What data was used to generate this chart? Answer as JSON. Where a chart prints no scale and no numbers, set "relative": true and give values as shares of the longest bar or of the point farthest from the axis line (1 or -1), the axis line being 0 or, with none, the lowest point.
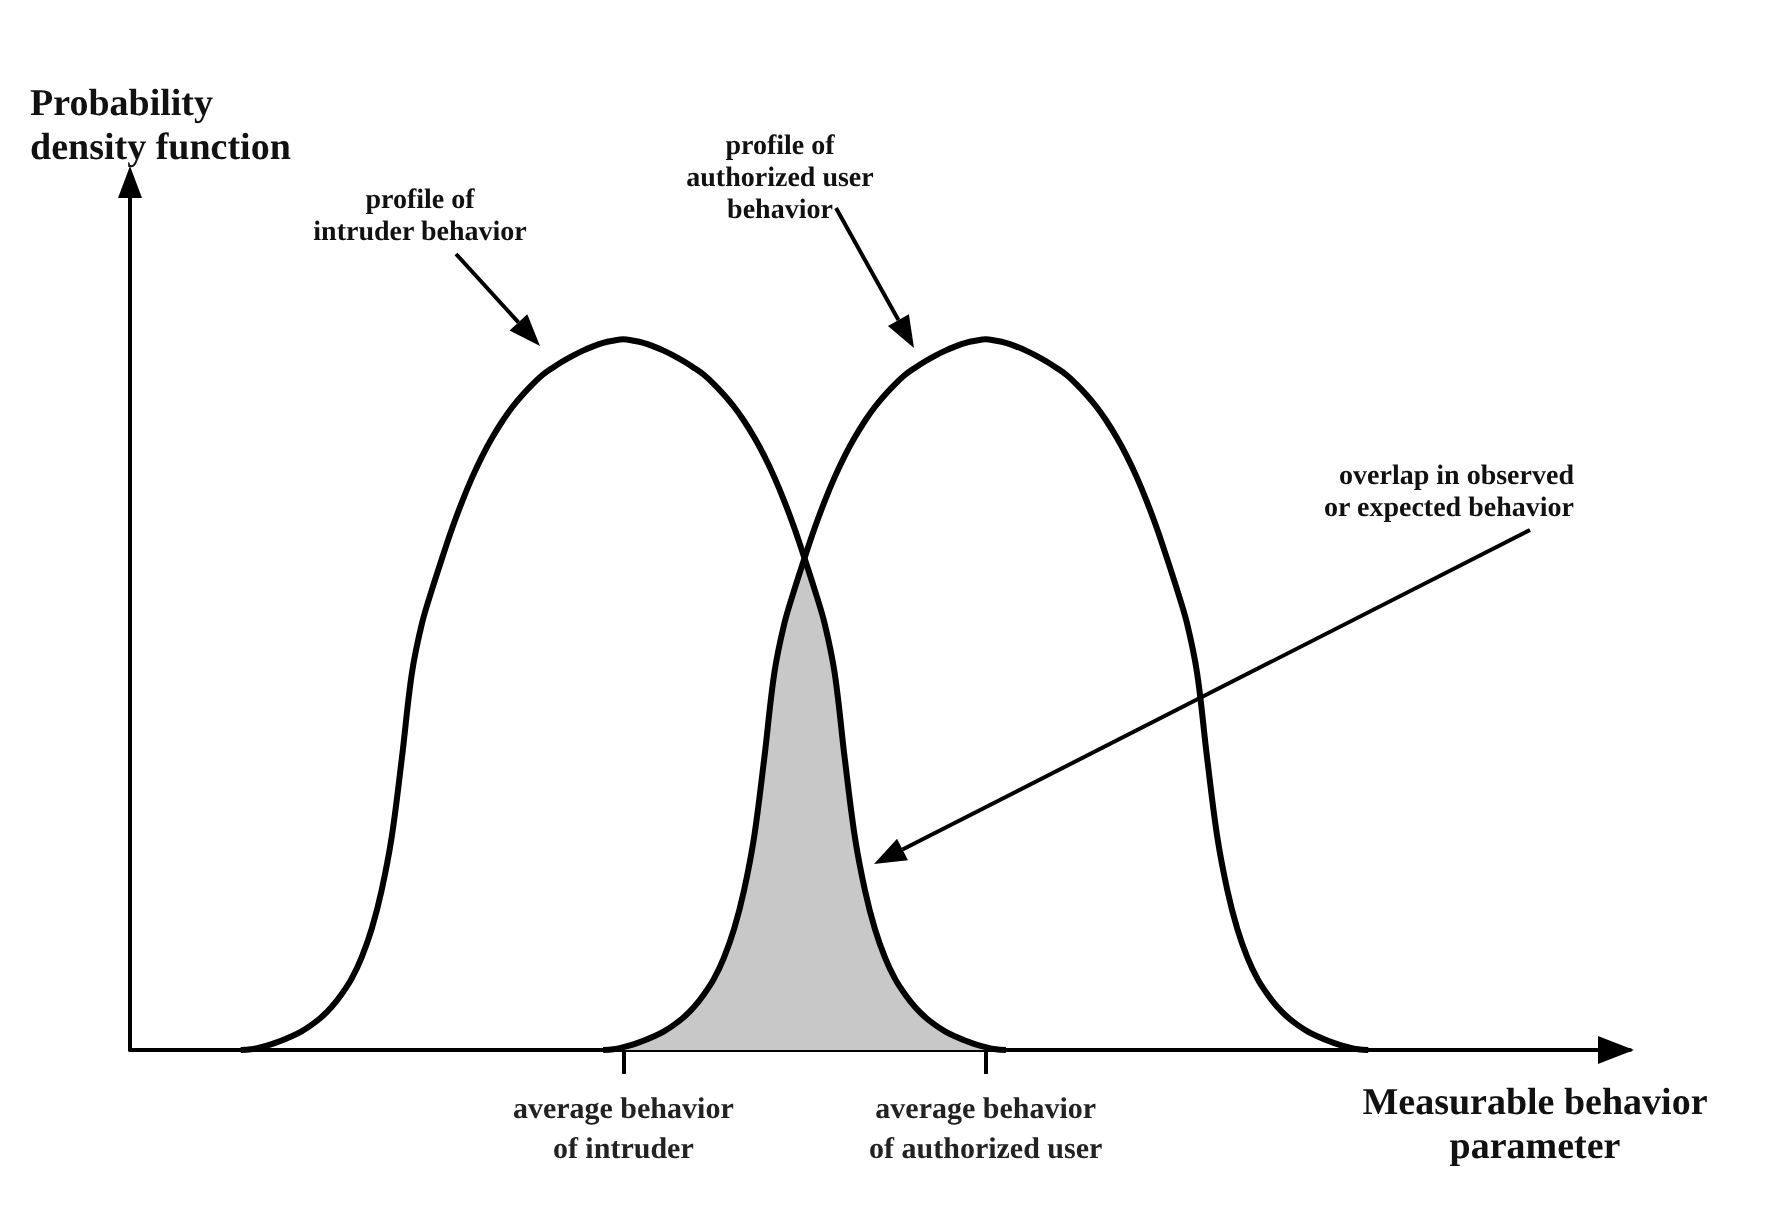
{
  "chart_data": {
    "type": "line",
    "relative": true,
    "marker": "none",
    "xlabel": "Measurable behavior\nparameter",
    "ylabel": "Probability\ndensity function",
    "annotations": [
      "profile of\nintruder behavior",
      "profile of\nauthorized user\nbehavior",
      "overlap in observed\nor expected behavior"
    ],
    "categories": [
      null,
      null,
      null,
      null,
      null,
      null,
      null,
      null,
      null,
      null,
      null,
      null,
      null,
      null,
      null,
      null,
      null,
      null,
      null,
      null,
      null,
      null,
      null,
      null,
      null,
      null,
      null,
      null,
      null,
      null,
      null,
      null,
      null,
      null,
      null,
      null,
      null,
      null,
      null,
      null,
      null,
      null,
      null,
      null,
      null,
      null,
      null,
      null,
      null,
      "average behavior\nof intruder",
      null,
      null,
      null,
      null,
      null,
      null,
      null,
      null,
      null,
      null,
      null,
      null,
      null,
      null,
      null,
      null,
      null,
      null,
      null,
      null,
      null,
      null,
      null,
      null,
      null,
      null,
      null,
      null,
      null,
      null,
      null,
      null,
      null,
      null,
      null,
      "average behavior\nof authorized user",
      null,
      null,
      null,
      null,
      null,
      null,
      null,
      null,
      null,
      null,
      null,
      null,
      null,
      null,
      null,
      null,
      null,
      null,
      null,
      null,
      null,
      null,
      null,
      null,
      null,
      null,
      null,
      null,
      null,
      null,
      null,
      null,
      null,
      null,
      null,
      null,
      null,
      null,
      null,
      null,
      null,
      null,
      null,
      null,
      null,
      null,
      null,
      null,
      null,
      null,
      null,
      null,
      null,
      null,
      null,
      null,
      null,
      null,
      null,
      null,
      null,
      null,
      null,
      null
    ],
    "series": [
      {
        "type": "area",
        "color": "#c8c8c8",
        "values": [
          null,
          null,
          null,
          null,
          null,
          null,
          null,
          null,
          null,
          null,
          null,
          null,
          null,
          null,
          null,
          null,
          null,
          null,
          null,
          null,
          null,
          null,
          null,
          null,
          null,
          null,
          null,
          null,
          null,
          null,
          null,
          null,
          null,
          null,
          null,
          null,
          null,
          null,
          null,
          null,
          null,
          null,
          null,
          null,
          null,
          null,
          null,
          0,
          0.001,
          0.004,
          0.008,
          0.013,
          0.019,
          0.026,
          0.035,
          0.046,
          0.06,
          0.078,
          0.1,
          0.13,
          0.17,
          0.225,
          0.3,
          0.41,
          0.53,
          0.6,
          0.648,
          0.692,
          0.648,
          0.6,
          0.53,
          0.41,
          0.3,
          0.225,
          0.17,
          0.13,
          0.1,
          0.078,
          0.06,
          0.046,
          0.035,
          0.026,
          0.019,
          0.013,
          0.008,
          0.004,
          0.001,
          0,
          null,
          null,
          null,
          null,
          null,
          null,
          null,
          null,
          null,
          null,
          null,
          null,
          null,
          null,
          null,
          null,
          null,
          null,
          null,
          null,
          null,
          null,
          null,
          null,
          null,
          null,
          null,
          null,
          null,
          null,
          null,
          null,
          null,
          null,
          null,
          null,
          null,
          null,
          null,
          null,
          null,
          null,
          null,
          null,
          null,
          null,
          null,
          null,
          null,
          null,
          null,
          null,
          null,
          null,
          null,
          null,
          null,
          null,
          null,
          null,
          null,
          null
        ]
      },
      {
        "color": "#000000",
        "values": [
          null,
          null,
          null,
          null,
          null,
          null,
          null,
          null,
          null,
          null,
          null,
          0,
          0.001,
          0.004,
          0.008,
          0.013,
          0.019,
          0.026,
          0.035,
          0.046,
          0.06,
          0.078,
          0.1,
          0.13,
          0.17,
          0.225,
          0.3,
          0.41,
          0.53,
          0.6,
          0.648,
          0.692,
          0.734,
          0.772,
          0.806,
          0.836,
          0.862,
          0.885,
          0.905,
          0.922,
          0.937,
          0.95,
          0.96,
          0.969,
          0.977,
          0.984,
          0.99,
          0.995,
          0.998,
          1,
          0.998,
          0.995,
          0.99,
          0.984,
          0.977,
          0.969,
          0.96,
          0.95,
          0.937,
          0.922,
          0.905,
          0.885,
          0.862,
          0.836,
          0.806,
          0.772,
          0.734,
          0.692,
          0.648,
          0.6,
          0.53,
          0.41,
          0.3,
          0.225,
          0.17,
          0.13,
          0.1,
          0.078,
          0.06,
          0.046,
          0.035,
          0.026,
          0.019,
          0.013,
          0.008,
          0.004,
          0.001,
          0,
          null,
          null,
          null,
          null,
          null,
          null,
          null,
          null,
          null,
          null,
          null,
          null,
          null,
          null,
          null,
          null,
          null,
          null,
          null,
          null,
          null,
          null,
          null,
          null,
          null,
          null,
          null,
          null,
          null,
          null,
          null,
          null,
          null,
          null,
          null,
          null,
          null,
          null,
          null,
          null,
          null,
          null,
          null,
          null,
          null,
          null,
          null,
          null,
          null,
          null,
          null,
          null,
          null,
          null,
          null,
          null,
          null,
          null,
          null,
          null,
          null,
          null
        ]
      },
      {
        "color": "#000000",
        "values": [
          null,
          null,
          null,
          null,
          null,
          null,
          null,
          null,
          null,
          null,
          null,
          null,
          null,
          null,
          null,
          null,
          null,
          null,
          null,
          null,
          null,
          null,
          null,
          null,
          null,
          null,
          null,
          null,
          null,
          null,
          null,
          null,
          null,
          null,
          null,
          null,
          null,
          null,
          null,
          null,
          null,
          null,
          null,
          null,
          null,
          null,
          null,
          0,
          0.001,
          0.004,
          0.008,
          0.013,
          0.019,
          0.026,
          0.035,
          0.046,
          0.06,
          0.078,
          0.1,
          0.13,
          0.17,
          0.225,
          0.3,
          0.41,
          0.53,
          0.6,
          0.648,
          0.692,
          0.734,
          0.772,
          0.806,
          0.836,
          0.862,
          0.885,
          0.905,
          0.922,
          0.937,
          0.95,
          0.96,
          0.969,
          0.977,
          0.984,
          0.99,
          0.995,
          0.998,
          1,
          0.998,
          0.995,
          0.99,
          0.984,
          0.977,
          0.969,
          0.96,
          0.95,
          0.937,
          0.922,
          0.905,
          0.885,
          0.862,
          0.836,
          0.806,
          0.772,
          0.734,
          0.692,
          0.648,
          0.6,
          0.53,
          0.41,
          0.3,
          0.225,
          0.17,
          0.13,
          0.1,
          0.078,
          0.06,
          0.046,
          0.035,
          0.026,
          0.019,
          0.013,
          0.008,
          0.004,
          0.001,
          0,
          null,
          null,
          null,
          null,
          null,
          null,
          null,
          null,
          null,
          null,
          null,
          null,
          null,
          null,
          null,
          null,
          null,
          null,
          null,
          null,
          null,
          null,
          null,
          null,
          null,
          null
        ]
      }
    ]
  }
}
